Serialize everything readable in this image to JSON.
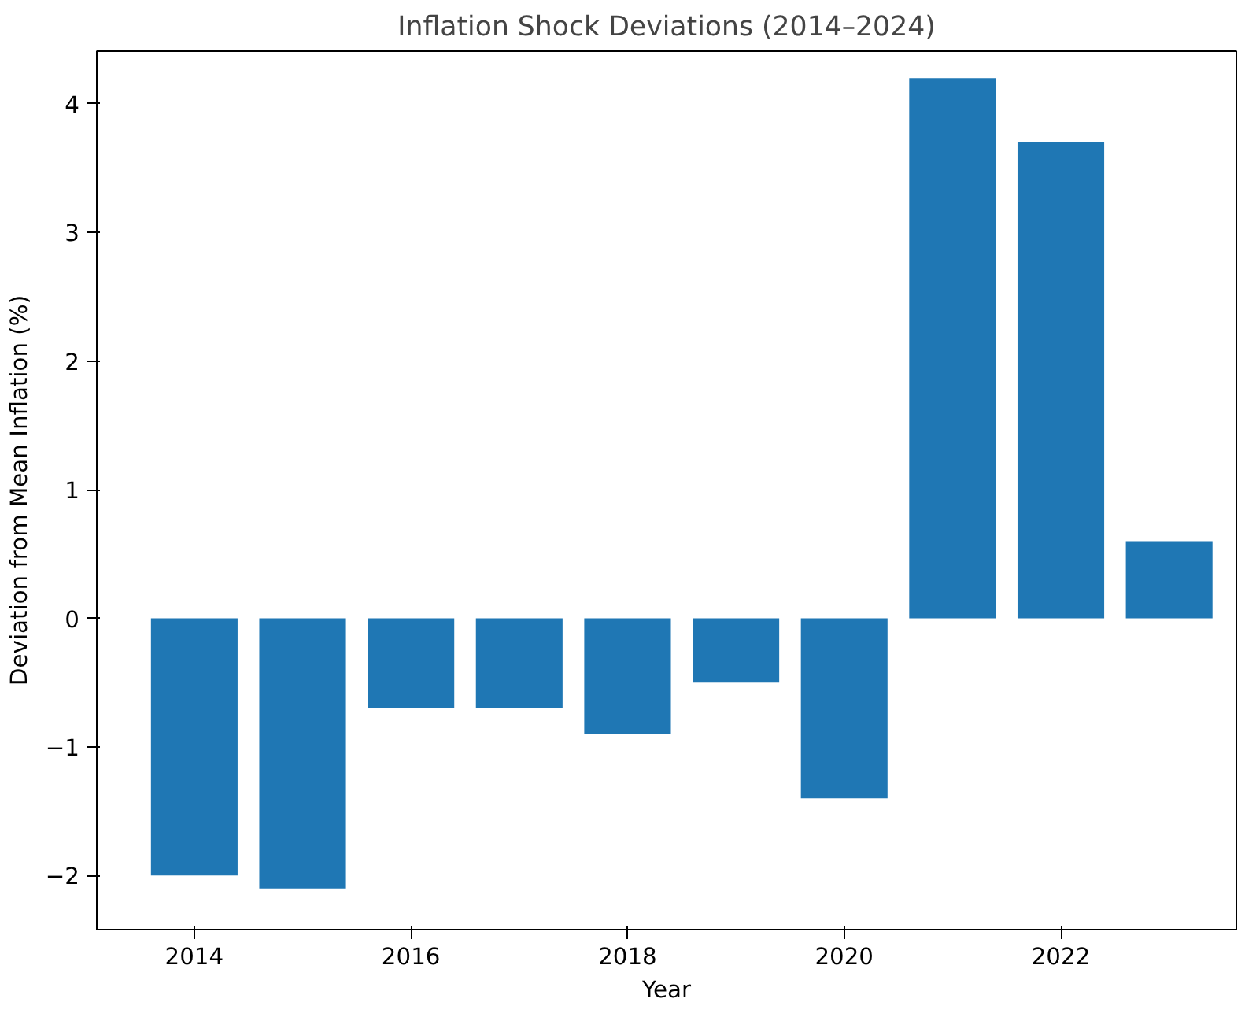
{
  "chart_data": {
    "type": "bar",
    "title": "Inflation Shock Deviations (2014–2024)",
    "xlabel": "Year",
    "ylabel": "Deviation from Mean Inflation (%)",
    "x": [
      2014,
      2015,
      2016,
      2017,
      2018,
      2019,
      2020,
      2021,
      2022,
      2023
    ],
    "values": [
      -2.0,
      -2.1,
      -0.7,
      -0.7,
      -0.9,
      -0.5,
      -1.4,
      4.2,
      3.7,
      0.6
    ],
    "color": "#1f77b4",
    "xlim": [
      2013.1,
      2023.62
    ],
    "xticks": [
      2014,
      2016,
      2018,
      2020,
      2022
    ],
    "ylim": [
      -2.42,
      4.41
    ],
    "yticks": [
      -2,
      -1,
      0,
      1,
      2,
      3,
      4
    ],
    "grid": false
  }
}
